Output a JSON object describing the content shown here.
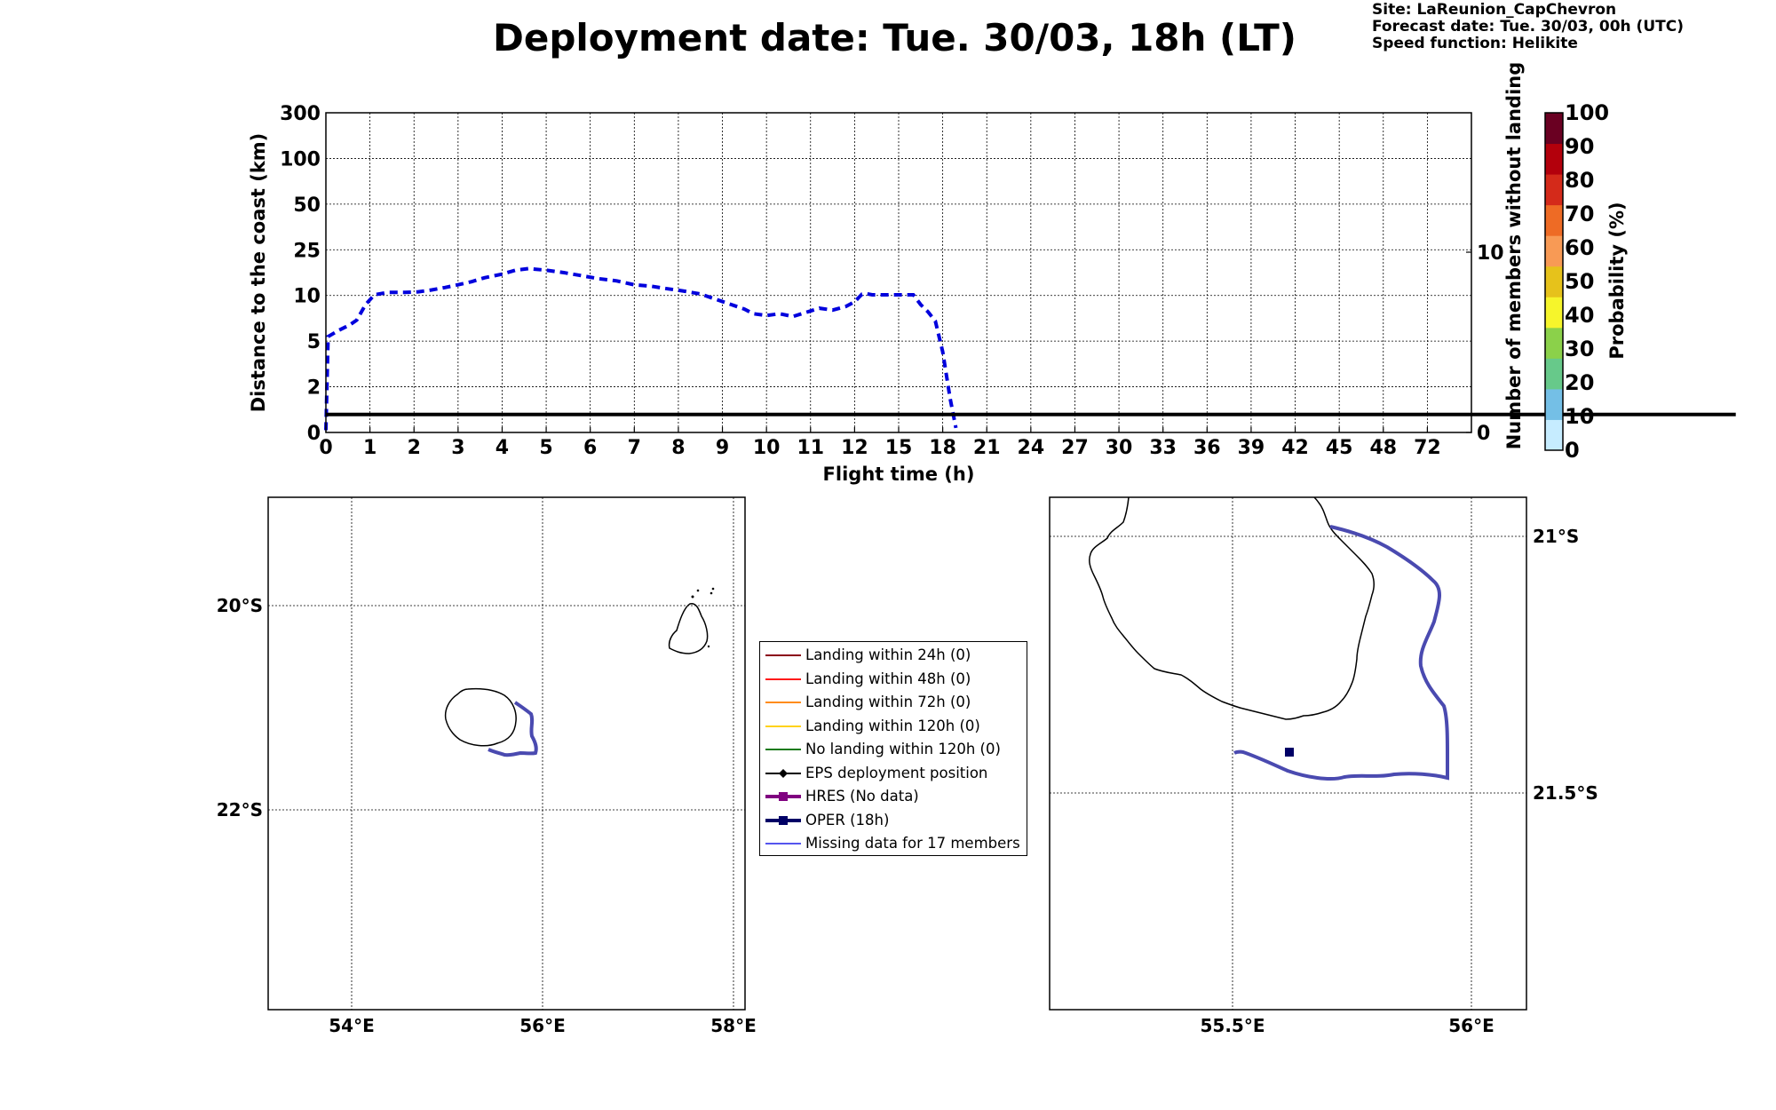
{
  "header": {
    "title": "Deployment date: Tue. 30/03, 18h (LT)",
    "site": "Site: LaReunion_CapChevron",
    "forecast_date": "Forecast date: Tue. 30/03, 00h (UTC)",
    "speed_function": "Speed function: Helikite"
  },
  "chart_data": [
    {
      "type": "line",
      "xlabel": "Flight time (h)",
      "ylabel": "Distance to the coast (km)",
      "ylabel_right": "Number of members without landing",
      "x_ticks": [
        "0",
        "1",
        "2",
        "3",
        "4",
        "5",
        "6",
        "7",
        "8",
        "9",
        "10",
        "11",
        "12",
        "15",
        "18",
        "21",
        "24",
        "27",
        "30",
        "33",
        "36",
        "39",
        "42",
        "45",
        "48",
        "72"
      ],
      "y_ticks": [
        "0",
        "2",
        "5",
        "10",
        "25",
        "50",
        "100",
        "300"
      ],
      "y_right_ticks": [
        "0",
        "10"
      ],
      "xlim": [
        0,
        72
      ],
      "grid": true,
      "series": [
        {
          "style": "dashed",
          "color": "#0000dd",
          "x": [
            0,
            0.05,
            0.3,
            0.55,
            0.7,
            0.9,
            1.1,
            1.4,
            1.8,
            2.1,
            2.4,
            2.7,
            3.0,
            3.3,
            3.6,
            4.0,
            4.3,
            4.6,
            5.0,
            5.4,
            5.8,
            6.2,
            6.6,
            7.0,
            7.4,
            7.7,
            8.1,
            8.5,
            8.9,
            9.2,
            9.5,
            9.7,
            10.0,
            10.3,
            10.6,
            10.8,
            11.0,
            11.2,
            11.5,
            11.8,
            12.0,
            12.3,
            12.5,
            12.8,
            13.2,
            14.0,
            15.0,
            16.0,
            16.5,
            17.0,
            17.5,
            18.0,
            18.5,
            18.9
          ],
          "y": [
            0.1,
            5.5,
            6.2,
            6.8,
            7.3,
            9.0,
            10.2,
            11.0,
            11.0,
            11.2,
            11.8,
            12.6,
            13.5,
            14.5,
            15.8,
            17.0,
            18.3,
            18.8,
            18.3,
            17.5,
            16.5,
            15.5,
            14.8,
            13.5,
            13.0,
            12.3,
            11.5,
            10.5,
            9.5,
            9.0,
            8.5,
            8.0,
            7.8,
            8.0,
            7.7,
            8.0,
            8.3,
            8.6,
            8.4,
            8.8,
            9.3,
            9.8,
            10.4,
            10.6,
            10.2,
            10.2,
            10.2,
            10.2,
            9.0,
            8.2,
            7.2,
            4.3,
            1.5,
            0.2
          ]
        },
        {
          "style": "solid",
          "color": "#000000",
          "x": [
            0,
            72
          ],
          "y_right": [
            1,
            1
          ]
        }
      ]
    },
    {
      "type": "map",
      "lat_ticks": [
        "20°S",
        "22°S"
      ],
      "lon_ticks": [
        "54°E",
        "56°E",
        "58°E"
      ]
    },
    {
      "type": "map",
      "lat_ticks": [
        "21°S",
        "21.5°S"
      ],
      "lon_ticks": [
        "55.5°E",
        "56°E"
      ]
    }
  ],
  "colorbar": {
    "label": "Probability (%)",
    "ticks": [
      "0",
      "10",
      "20",
      "30",
      "40",
      "50",
      "60",
      "70",
      "80",
      "90",
      "100"
    ],
    "colors": [
      "#c6ecff",
      "#74bfe6",
      "#67c98a",
      "#8bd14a",
      "#f6f52b",
      "#e6c21b",
      "#f89a55",
      "#ee6b25",
      "#d42a1a",
      "#b3000c",
      "#6a0022"
    ]
  },
  "legend": {
    "items": [
      {
        "label": "Landing within 24h (0)",
        "color": "#8b0018",
        "marker": "none",
        "width": 2
      },
      {
        "label": "Landing within 48h (0)",
        "color": "#ff1a1a",
        "marker": "none",
        "width": 2
      },
      {
        "label": "Landing within 72h (0)",
        "color": "#ff8c1a",
        "marker": "none",
        "width": 2
      },
      {
        "label": "Landing within 120h (0)",
        "color": "#ffd21a",
        "marker": "none",
        "width": 2
      },
      {
        "label": "No landing within 120h (0)",
        "color": "#1a7a1a",
        "marker": "none",
        "width": 2
      },
      {
        "label": "EPS deployment position",
        "color": "#000000",
        "marker": "diamond",
        "width": 2
      },
      {
        "label": "HRES (No data)",
        "color": "#800080",
        "marker": "square",
        "width": 4
      },
      {
        "label": "OPER (18h)",
        "color": "#000066",
        "marker": "square",
        "width": 4
      },
      {
        "label": "Missing data for 17 members",
        "color": "#5555ee",
        "marker": "none",
        "width": 2
      }
    ]
  }
}
